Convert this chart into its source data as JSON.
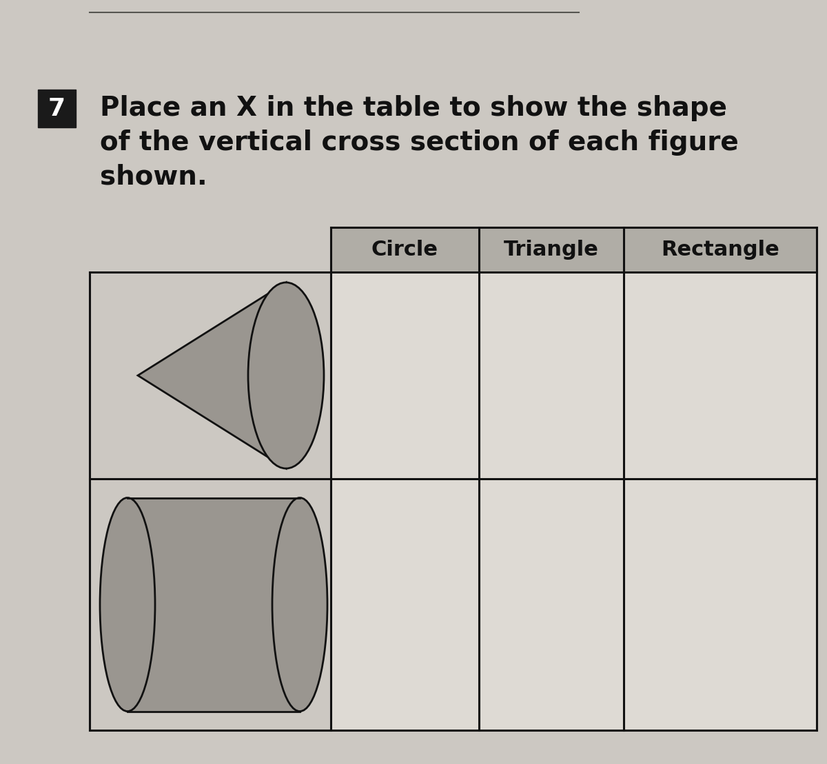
{
  "background_color": "#ccc8c2",
  "title_number": "7",
  "title_number_bg": "#1a1a1a",
  "title_text_line1": "Place an X in the table to show the shape",
  "title_text_line2": "of the vertical cross section of each figure",
  "title_text_line3": "shown.",
  "title_fontsize": 28,
  "table_headers": [
    "Circle",
    "Triangle",
    "Rectangle"
  ],
  "header_bg": "#b0ada6",
  "cell_bg": "#dedad4",
  "figure_cell_bg": "#ccc8c2",
  "table_line_color": "#111111",
  "line_width": 2.2,
  "shape_color": "#9a9690",
  "shape_edge_color": "#111111",
  "top_line_color": "#555550"
}
